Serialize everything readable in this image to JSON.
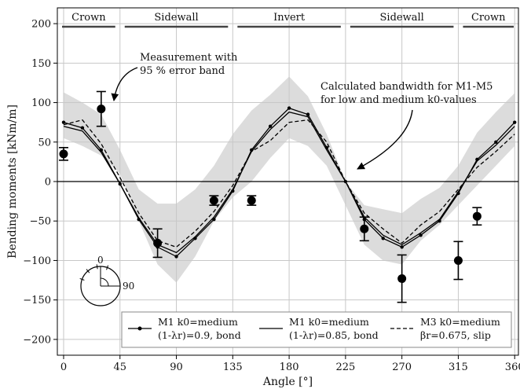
{
  "chart_data": {
    "type": "line",
    "xlabel": "Angle [°]",
    "ylabel": "Bending moments [kNm/m]",
    "xlim": [
      -5,
      363
    ],
    "ylim": [
      -220,
      220
    ],
    "xticks": [
      0,
      45,
      90,
      135,
      180,
      225,
      270,
      315,
      360
    ],
    "yticks": [
      -200,
      -150,
      -100,
      -50,
      0,
      50,
      100,
      150,
      200
    ],
    "grid": true,
    "regions": [
      {
        "label": "Crown",
        "from": -5,
        "to": 45
      },
      {
        "label": "Sidewall",
        "from": 45,
        "to": 135
      },
      {
        "label": "Invert",
        "from": 135,
        "to": 225
      },
      {
        "label": "Sidewall",
        "from": 225,
        "to": 315
      },
      {
        "label": "Crown",
        "from": 315,
        "to": 363
      }
    ],
    "band": {
      "x": [
        0,
        15,
        30,
        45,
        60,
        75,
        90,
        105,
        120,
        135,
        150,
        165,
        180,
        195,
        210,
        225,
        240,
        255,
        270,
        285,
        300,
        315,
        330,
        345,
        360
      ],
      "upper": [
        113,
        100,
        85,
        40,
        -10,
        -28,
        -28,
        -10,
        20,
        60,
        90,
        110,
        133,
        108,
        60,
        0,
        -30,
        -35,
        -40,
        -22,
        -8,
        20,
        62,
        88,
        112
      ],
      "lower": [
        55,
        45,
        33,
        10,
        -50,
        -105,
        -128,
        -95,
        -50,
        -20,
        0,
        30,
        55,
        45,
        20,
        -30,
        -80,
        -100,
        -105,
        -75,
        -55,
        -30,
        -5,
        20,
        45
      ]
    },
    "series": [
      {
        "name": "M1 k0=medium (1-λr)=0.9, bond",
        "style": "solid-dot",
        "x": [
          0,
          15,
          30,
          45,
          60,
          75,
          90,
          105,
          120,
          135,
          150,
          165,
          180,
          195,
          210,
          225,
          240,
          255,
          270,
          285,
          300,
          315,
          330,
          345,
          360
        ],
        "y": [
          75,
          68,
          40,
          -3,
          -48,
          -83,
          -95,
          -72,
          -48,
          -12,
          40,
          70,
          93,
          85,
          43,
          0,
          -48,
          -72,
          -83,
          -68,
          -50,
          -15,
          28,
          50,
          75
        ]
      },
      {
        "name": "M1 k0=medium (1-λr)=0.85, bond",
        "style": "solid",
        "x": [
          0,
          15,
          30,
          45,
          60,
          75,
          90,
          105,
          120,
          135,
          150,
          165,
          180,
          195,
          210,
          225,
          240,
          255,
          270,
          285,
          300,
          315,
          330,
          345,
          360
        ],
        "y": [
          70,
          64,
          37,
          -3,
          -46,
          -80,
          -90,
          -70,
          -45,
          -10,
          38,
          66,
          88,
          82,
          40,
          0,
          -45,
          -68,
          -80,
          -65,
          -48,
          -13,
          26,
          46,
          70
        ]
      },
      {
        "name": "M3 k0=medium βr=0.675, slip",
        "style": "dashed",
        "x": [
          0,
          15,
          30,
          45,
          60,
          75,
          90,
          105,
          120,
          135,
          150,
          165,
          180,
          195,
          210,
          225,
          240,
          255,
          270,
          285,
          300,
          315,
          330,
          345,
          360
        ],
        "y": [
          72,
          78,
          48,
          5,
          -40,
          -75,
          -83,
          -63,
          -38,
          -5,
          38,
          52,
          75,
          78,
          50,
          0,
          -40,
          -60,
          -78,
          -55,
          -38,
          -10,
          18,
          38,
          60
        ]
      }
    ],
    "measurements": [
      {
        "x": 0,
        "y": 35,
        "err": 8
      },
      {
        "x": 30,
        "y": 92,
        "err": 22
      },
      {
        "x": 75,
        "y": -78,
        "err": 18
      },
      {
        "x": 120,
        "y": -24,
        "err": 6
      },
      {
        "x": 150,
        "y": -24,
        "err": 6
      },
      {
        "x": 240,
        "y": -60,
        "err": 15
      },
      {
        "x": 270,
        "y": -123,
        "err": 30
      },
      {
        "x": 315,
        "y": -100,
        "err": 24
      },
      {
        "x": 330,
        "y": -44,
        "err": 11
      }
    ],
    "annotations": [
      {
        "text": [
          "Measurement with",
          "95 % error band"
        ],
        "target": [
          30,
          92
        ]
      },
      {
        "text": [
          "Calculated bandwidth for M1-M5",
          "for low and medium k0-values"
        ],
        "target": [
          240,
          15
        ]
      }
    ],
    "legend": [
      {
        "line1": "M1 k0=medium",
        "line2": "(1-λr)=0.9, bond",
        "style": "solid-dot"
      },
      {
        "line1": "M1 k0=medium",
        "line2": "(1-λr)=0.85, bond",
        "style": "solid"
      },
      {
        "line1": "M3 k0=medium",
        "line2": "βr=0.675, slip",
        "style": "dashed"
      }
    ],
    "legend_position": "bottom-right",
    "inset": {
      "label_top": "0",
      "label_right": "90"
    }
  }
}
